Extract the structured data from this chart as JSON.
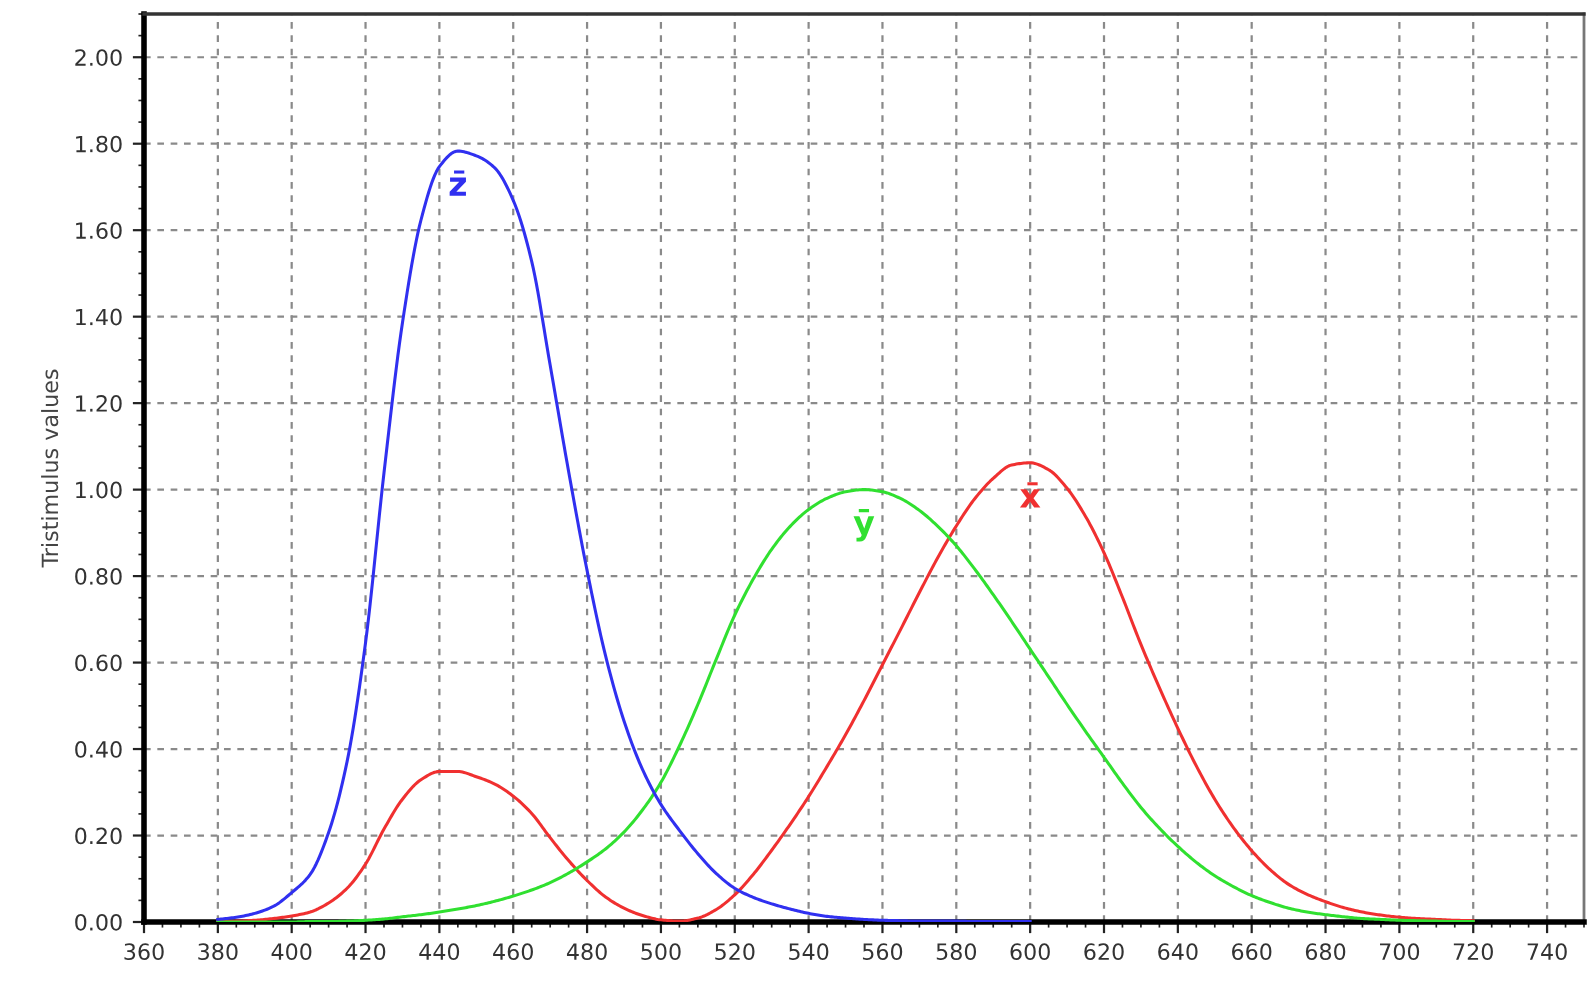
{
  "chart_data": {
    "type": "line",
    "ylabel": "Tristimulus values",
    "x": [
      380,
      385,
      390,
      395,
      400,
      405,
      410,
      415,
      420,
      425,
      430,
      435,
      440,
      445,
      450,
      455,
      460,
      465,
      470,
      475,
      480,
      485,
      490,
      495,
      500,
      505,
      510,
      515,
      520,
      525,
      530,
      535,
      540,
      545,
      550,
      555,
      560,
      565,
      570,
      575,
      580,
      585,
      590,
      595,
      600,
      605,
      610,
      615,
      620,
      625,
      630,
      635,
      640,
      645,
      650,
      655,
      660,
      665,
      670,
      675,
      680,
      685,
      690,
      695,
      700,
      705,
      710,
      715,
      720
    ],
    "series": [
      {
        "name": "x̄",
        "color": "#f03030",
        "values": [
          0.001,
          0.002,
          0.004,
          0.008,
          0.014,
          0.023,
          0.044,
          0.078,
          0.134,
          0.215,
          0.284,
          0.329,
          0.348,
          0.348,
          0.336,
          0.319,
          0.291,
          0.251,
          0.195,
          0.142,
          0.096,
          0.058,
          0.032,
          0.015,
          0.005,
          0.002,
          0.009,
          0.029,
          0.063,
          0.11,
          0.166,
          0.226,
          0.29,
          0.36,
          0.433,
          0.512,
          0.595,
          0.678,
          0.762,
          0.843,
          0.916,
          0.979,
          1.026,
          1.057,
          1.062,
          1.046,
          1.003,
          0.938,
          0.854,
          0.751,
          0.642,
          0.542,
          0.448,
          0.361,
          0.284,
          0.219,
          0.165,
          0.121,
          0.087,
          0.064,
          0.047,
          0.033,
          0.023,
          0.016,
          0.011,
          0.008,
          0.006,
          0.004,
          0.003
        ]
      },
      {
        "name": "ȳ",
        "color": "#30e030",
        "values": [
          0.0,
          0.0,
          0.0,
          0.0,
          0.0,
          0.001,
          0.001,
          0.002,
          0.004,
          0.007,
          0.012,
          0.017,
          0.023,
          0.03,
          0.038,
          0.048,
          0.06,
          0.074,
          0.091,
          0.113,
          0.139,
          0.169,
          0.208,
          0.259,
          0.323,
          0.407,
          0.503,
          0.608,
          0.71,
          0.793,
          0.862,
          0.915,
          0.954,
          0.98,
          0.995,
          1.0,
          0.995,
          0.979,
          0.952,
          0.915,
          0.87,
          0.816,
          0.757,
          0.695,
          0.631,
          0.567,
          0.503,
          0.441,
          0.381,
          0.321,
          0.265,
          0.217,
          0.175,
          0.138,
          0.107,
          0.082,
          0.061,
          0.045,
          0.032,
          0.023,
          0.017,
          0.012,
          0.008,
          0.006,
          0.004,
          0.003,
          0.002,
          0.001,
          0.001
        ]
      },
      {
        "name": "z̄",
        "color": "#3030f0",
        "x": [
          380,
          385,
          390,
          395,
          400,
          405,
          410,
          415,
          420,
          425,
          430,
          435,
          440,
          445,
          450,
          455,
          460,
          465,
          470,
          475,
          480,
          485,
          490,
          495,
          500,
          505,
          510,
          515,
          520,
          525,
          530,
          535,
          540,
          545,
          550,
          555,
          560,
          565,
          570,
          575,
          580,
          585,
          590,
          595,
          600
        ],
        "values": [
          0.006,
          0.011,
          0.02,
          0.036,
          0.068,
          0.11,
          0.207,
          0.371,
          0.646,
          1.039,
          1.386,
          1.623,
          1.747,
          1.783,
          1.772,
          1.744,
          1.669,
          1.528,
          1.288,
          1.042,
          0.813,
          0.616,
          0.465,
          0.353,
          0.272,
          0.212,
          0.158,
          0.112,
          0.078,
          0.057,
          0.042,
          0.03,
          0.02,
          0.013,
          0.009,
          0.006,
          0.004,
          0.003,
          0.002,
          0.002,
          0.002,
          0.001,
          0.001,
          0.001,
          0.001
        ]
      }
    ],
    "xlim": [
      360,
      750
    ],
    "ylim": [
      0,
      2.1
    ],
    "xticks": [
      360,
      380,
      400,
      420,
      440,
      460,
      480,
      500,
      520,
      540,
      560,
      580,
      600,
      620,
      640,
      660,
      680,
      700,
      720,
      740
    ],
    "yticks": [
      {
        "value": 0,
        "label": "0.00"
      },
      {
        "value": 0.2,
        "label": "0.20"
      },
      {
        "value": 0.4,
        "label": "0.40"
      },
      {
        "value": 0.6,
        "label": "0.60"
      },
      {
        "value": 0.8,
        "label": "0.80"
      },
      {
        "value": 1.0,
        "label": "1.00"
      },
      {
        "value": 1.2,
        "label": "1.20"
      },
      {
        "value": 1.4,
        "label": "1.40"
      },
      {
        "value": 1.6,
        "label": "1.60"
      },
      {
        "value": 1.8,
        "label": "1.80"
      },
      {
        "value": 2.0,
        "label": "2.00"
      }
    ],
    "grid": true,
    "marker": "none",
    "line_style": "solid"
  }
}
